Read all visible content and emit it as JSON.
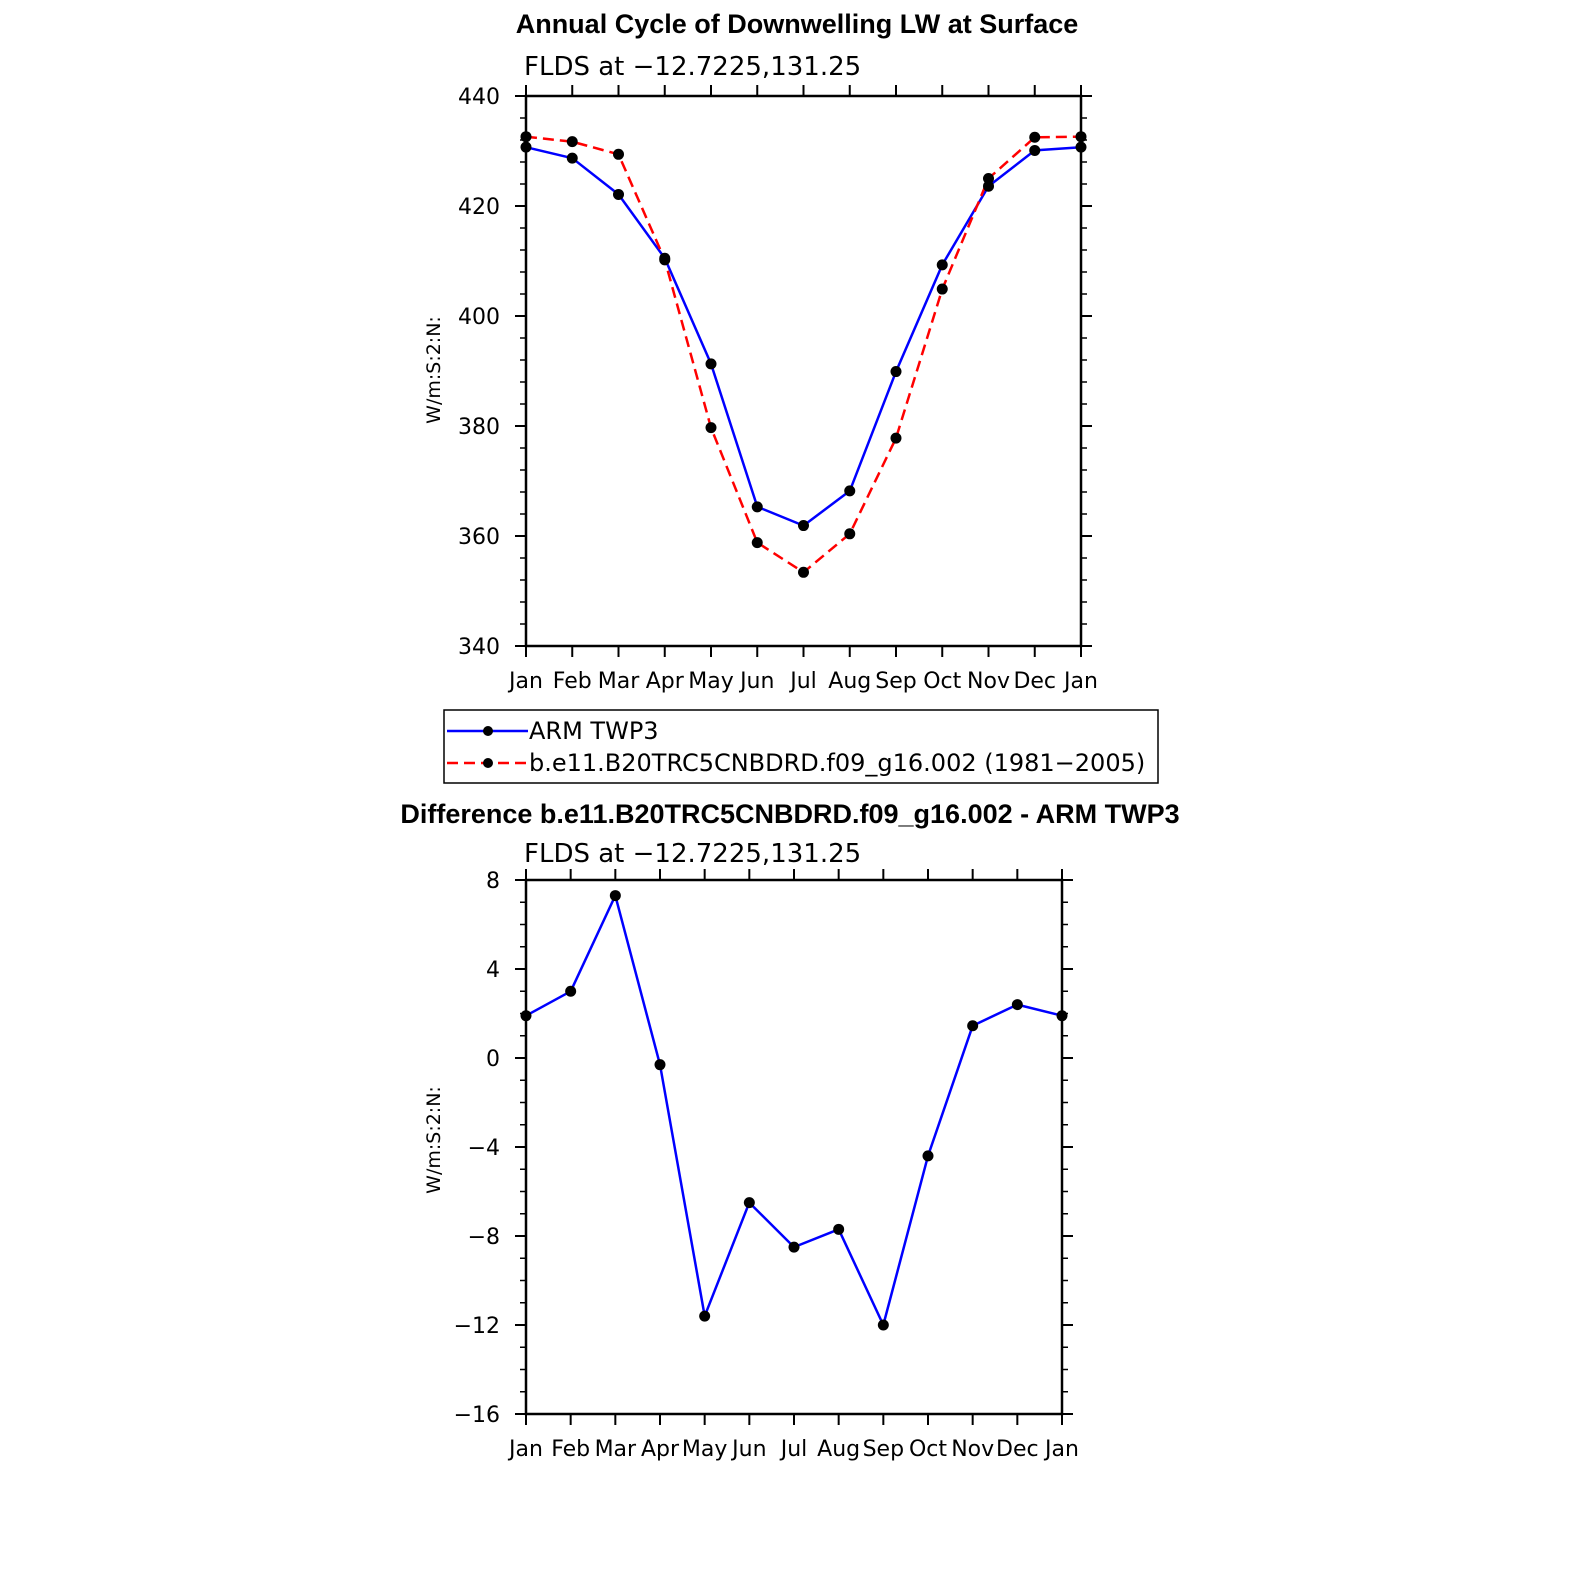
{
  "chart_data": [
    {
      "type": "line",
      "title": "Annual Cycle of Downwelling LW at Surface",
      "subtitle": "FLDS at −12.7225,131.25",
      "xlabel": "",
      "ylabel": "W/m:S:2:N:",
      "categories": [
        "Jan",
        "Feb",
        "Mar",
        "Apr",
        "May",
        "Jun",
        "Jul",
        "Aug",
        "Sep",
        "Oct",
        "Nov",
        "Dec",
        "Jan"
      ],
      "ylim": [
        340,
        440
      ],
      "yticks": [
        340,
        360,
        380,
        400,
        420,
        440
      ],
      "ytick_labels": [
        "340",
        "360",
        "380",
        "400",
        "420",
        "440"
      ],
      "grid": false,
      "legend_placement": "below",
      "series": [
        {
          "name": "ARM TWP3",
          "color": "#0000ff",
          "dash": "solid",
          "values": [
            430.7,
            428.7,
            422.1,
            410.5,
            391.3,
            365.3,
            361.9,
            368.2,
            389.9,
            409.3,
            423.6,
            430.1,
            430.7
          ]
        },
        {
          "name": "b.e11.B20TRC5CNBDRD.f09_g16.002 (1981−2005)",
          "color": "#ff0000",
          "dash": "dashed",
          "values": [
            432.6,
            431.7,
            429.4,
            410.2,
            379.7,
            358.8,
            353.4,
            360.4,
            377.8,
            404.9,
            425.0,
            432.5,
            432.6
          ]
        }
      ]
    },
    {
      "type": "line",
      "title": "Difference b.e11.B20TRC5CNBDRD.f09_g16.002 - ARM TWP3",
      "subtitle": "FLDS at −12.7225,131.25",
      "xlabel": "",
      "ylabel": "W/m:S:2:N:",
      "categories": [
        "Jan",
        "Feb",
        "Mar",
        "Apr",
        "May",
        "Jun",
        "Jul",
        "Aug",
        "Sep",
        "Oct",
        "Nov",
        "Dec",
        "Jan"
      ],
      "ylim": [
        -16,
        8
      ],
      "yticks": [
        -16,
        -12,
        -8,
        -4,
        0,
        4,
        8
      ],
      "ytick_labels": [
        "−16",
        "−12",
        "−8",
        "−4",
        "0",
        "4",
        "8"
      ],
      "grid": false,
      "series": [
        {
          "color": "#0000ff",
          "dash": "solid",
          "values": [
            1.9,
            3.0,
            7.3,
            -0.3,
            -11.6,
            -6.5,
            -8.5,
            -7.7,
            -12.0,
            -4.4,
            1.45,
            2.4,
            1.9
          ]
        }
      ]
    }
  ]
}
